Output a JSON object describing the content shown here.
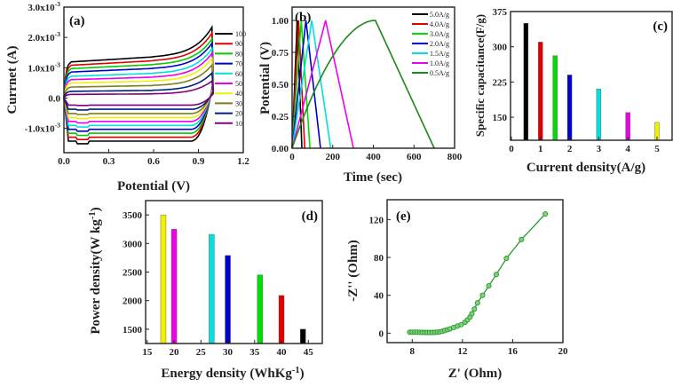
{
  "chart_data": [
    {
      "id": "a",
      "type": "line",
      "panel_label": "(a)",
      "xlabel": "Potential (V)",
      "ylabel": "Currnet (A)",
      "xlim": [
        0,
        1.2
      ],
      "ylim": [
        -0.0018,
        0.003
      ],
      "xticks": [
        0,
        0.3,
        0.6,
        0.9,
        1.2
      ],
      "xtick_labels": [
        "0.0",
        "0.3",
        "0.6",
        "0.9",
        "1.2"
      ],
      "yticks": [
        -0.001,
        0,
        0.001,
        0.002,
        0.003
      ],
      "ytick_labels": [
        "-1.0x10-3",
        "0.0",
        "1.0x10-3",
        "2.0x10-3",
        "3.0x10-3"
      ],
      "legend_placement": "right",
      "series": [
        {
          "name": "100",
          "color": "#000000",
          "upper": 0.00118,
          "lower": -0.00142,
          "peak": 0.00242
        },
        {
          "name": "90",
          "color": "#e00000",
          "upper": 0.00107,
          "lower": -0.00129,
          "peak": 0.00222
        },
        {
          "name": "80",
          "color": "#00cc00",
          "upper": 0.00096,
          "lower": -0.00116,
          "peak": 0.00202
        },
        {
          "name": "70",
          "color": "#0000cc",
          "upper": 0.00085,
          "lower": -0.00103,
          "peak": 0.00188
        },
        {
          "name": "60",
          "color": "#00e0e0",
          "upper": 0.00071,
          "lower": -0.0009,
          "peak": 0.0017
        },
        {
          "name": "50",
          "color": "#ee00ee",
          "upper": 0.0006,
          "lower": -0.00077,
          "peak": 0.00155
        },
        {
          "name": "40",
          "color": "#f0f000",
          "upper": 0.00049,
          "lower": -0.00064,
          "peak": 0.00138
        },
        {
          "name": "30",
          "color": "#7f7f1a",
          "upper": 0.00036,
          "lower": -0.00051,
          "peak": 0.00115
        },
        {
          "name": "20",
          "color": "#00207f",
          "upper": 0.00022,
          "lower": -0.00037,
          "peak": 0.00088
        },
        {
          "name": "10",
          "color": "#800080",
          "upper": 0.00012,
          "lower": -0.00023,
          "peak": 0.0006
        }
      ]
    },
    {
      "id": "b",
      "type": "line",
      "panel_label": "(b)",
      "xlabel": "Time (sec)",
      "ylabel": "Potential (V)",
      "xlim": [
        0,
        800
      ],
      "ylim": [
        0,
        1.104
      ],
      "xticks": [
        0,
        200,
        400,
        600,
        800
      ],
      "xtick_labels": [
        "0",
        "200",
        "400",
        "600",
        "800"
      ],
      "yticks": [
        0,
        0.25,
        0.5,
        0.75,
        1.0
      ],
      "ytick_labels": [
        "0.00",
        "0.25",
        "0.50",
        "0.75",
        "1.00"
      ],
      "legend_placement": "top-right",
      "series": [
        {
          "name": "5.0A/g",
          "color": "#000000",
          "charge_end": 25,
          "discharge_end": 48
        },
        {
          "name": "4.0A/g",
          "color": "#e00000",
          "charge_end": 32,
          "discharge_end": 62
        },
        {
          "name": "3.0A/g",
          "color": "#00dd00",
          "charge_end": 45,
          "discharge_end": 88
        },
        {
          "name": "2.0A/g",
          "color": "#0000cc",
          "charge_end": 68,
          "discharge_end": 140
        },
        {
          "name": "1.5A/g",
          "color": "#00e0e0",
          "charge_end": 97,
          "discharge_end": 190
        },
        {
          "name": "1.0A/g",
          "color": "#ee00ee",
          "charge_end": 165,
          "discharge_end": 302
        },
        {
          "name": "0.5A/g",
          "color": "#1a8a1a",
          "charge_end": 410,
          "discharge_end": 700
        }
      ]
    },
    {
      "id": "c",
      "type": "bar",
      "panel_label": "(c)",
      "xlabel": "Current density(A/g)",
      "ylabel": "Specific capacitance(F/g)",
      "xlim": [
        -0.03,
        5.52
      ],
      "ylim": [
        101,
        375
      ],
      "xticks": [
        0,
        1,
        2,
        3,
        4,
        5
      ],
      "xtick_labels": [
        "0",
        "1",
        "2",
        "3",
        "4",
        "5"
      ],
      "yticks": [
        150,
        225,
        300,
        375
      ],
      "ytick_labels": [
        "150",
        "225",
        "300",
        "375"
      ],
      "x": [
        0.5,
        1,
        1.5,
        2,
        3,
        4,
        5
      ],
      "values": [
        350,
        310,
        281,
        240,
        210,
        160,
        139
      ],
      "colors": [
        "#000000",
        "#e00000",
        "#00dd00",
        "#0000cc",
        "#00e0e0",
        "#ee00ee",
        "#f0f000"
      ]
    },
    {
      "id": "d",
      "type": "bar",
      "panel_label": "(d)",
      "xlabel": "Energy density (WhKg-1)",
      "ylabel": "Power density(W kg-1)",
      "xlim": [
        14.7,
        47.6
      ],
      "ylim": [
        1250,
        3750
      ],
      "xticks": [
        15,
        20,
        25,
        30,
        35,
        40,
        45
      ],
      "xtick_labels": [
        "15",
        "20",
        "25",
        "30",
        "35",
        "40",
        "45"
      ],
      "yticks": [
        1500,
        2000,
        2500,
        3000,
        3500
      ],
      "ytick_labels": [
        "1500",
        "2000",
        "2500",
        "3000",
        "3500"
      ],
      "x": [
        18,
        20,
        27,
        30,
        36,
        40,
        44
      ],
      "values": [
        3500,
        3250,
        3160,
        2790,
        2450,
        2090,
        1500
      ],
      "colors": [
        "#f0f000",
        "#ee00ee",
        "#00e0e0",
        "#0000cc",
        "#00dd00",
        "#e00000",
        "#000000"
      ]
    },
    {
      "id": "e",
      "type": "scatter",
      "panel_label": "(e)",
      "xlabel": "Z' (Ohm)",
      "ylabel": "-Z'' (Ohm)",
      "xlim": [
        6,
        20
      ],
      "ylim": [
        -10,
        141
      ],
      "xticks": [
        8,
        12,
        16,
        20
      ],
      "xtick_labels": [
        "8",
        "12",
        "16",
        "20"
      ],
      "yticks": [
        0,
        40,
        80,
        120
      ],
      "ytick_labels": [
        "0",
        "40",
        "80",
        "120"
      ],
      "color": "#2a9a2a",
      "points": [
        [
          7.8,
          1
        ],
        [
          8.0,
          1
        ],
        [
          8.2,
          1
        ],
        [
          8.4,
          1
        ],
        [
          8.6,
          0.8
        ],
        [
          8.8,
          0.8
        ],
        [
          9.0,
          0.7
        ],
        [
          9.2,
          0.7
        ],
        [
          9.4,
          0.7
        ],
        [
          9.6,
          0.7
        ],
        [
          9.8,
          0.8
        ],
        [
          10.0,
          1
        ],
        [
          10.2,
          1.4
        ],
        [
          10.4,
          2
        ],
        [
          10.6,
          2.8
        ],
        [
          10.8,
          3.6
        ],
        [
          11.0,
          4.5
        ],
        [
          11.3,
          6
        ],
        [
          11.6,
          7.5
        ],
        [
          11.9,
          9
        ],
        [
          12.2,
          11.5
        ],
        [
          12.4,
          14
        ],
        [
          12.6,
          17
        ],
        [
          12.75,
          20.5
        ],
        [
          12.95,
          25.5
        ],
        [
          13.2,
          32
        ],
        [
          13.6,
          40
        ],
        [
          14.1,
          50
        ],
        [
          14.7,
          62
        ],
        [
          15.5,
          79
        ],
        [
          16.7,
          99
        ],
        [
          18.6,
          126
        ]
      ]
    }
  ]
}
